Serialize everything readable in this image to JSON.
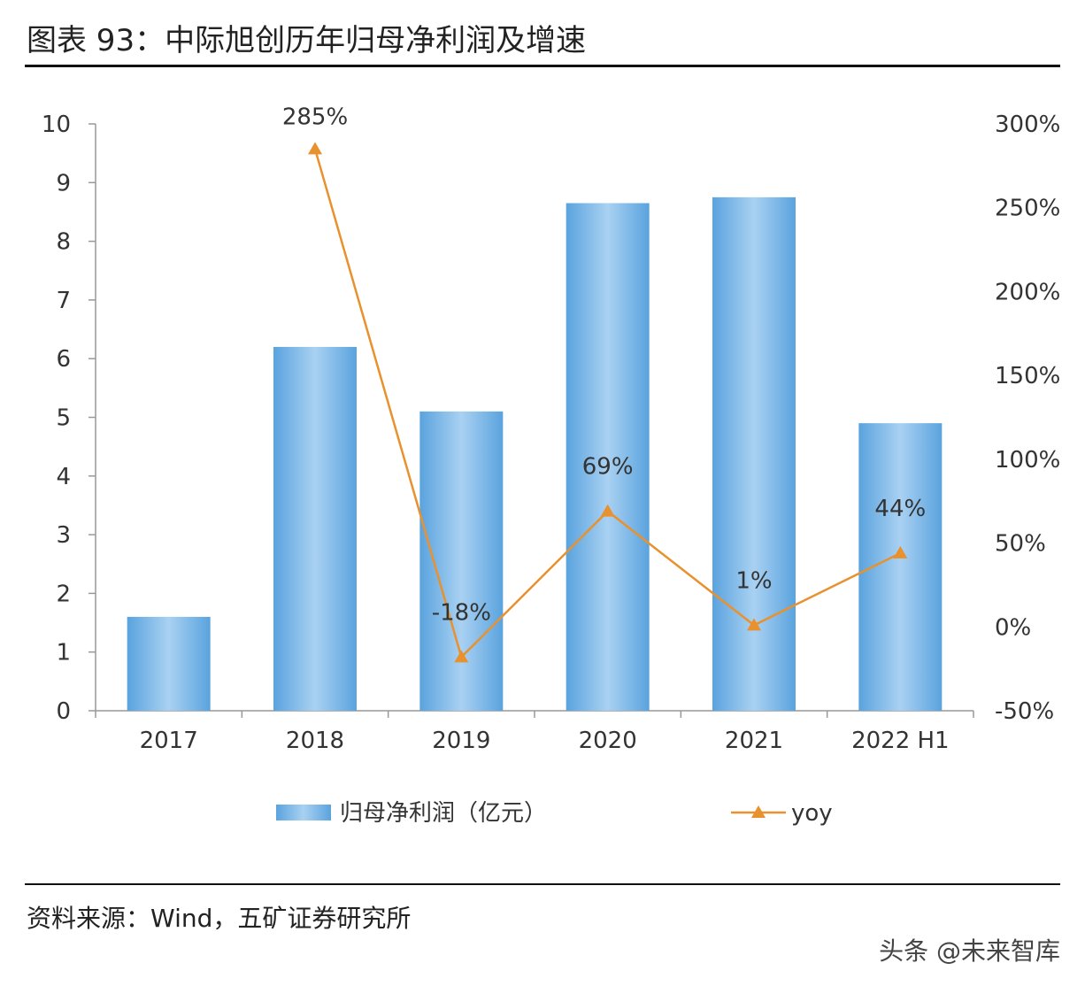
{
  "header": {
    "title": "图表 93：中际旭创历年归母净利润及增速"
  },
  "footer": {
    "source": "资料来源：Wind，五矿证券研究所",
    "watermark": "头条 @未来智库"
  },
  "colors": {
    "bar": "#5da6e0",
    "bar_light": "#a9d1f2",
    "line": "#e8912e"
  },
  "chart_data": {
    "type": "bar",
    "categories": [
      "2017",
      "2018",
      "2019",
      "2020",
      "2021",
      "2022 H1"
    ],
    "series": [
      {
        "name": "归母净利润（亿元）",
        "type": "bar",
        "axis": "left",
        "values": [
          1.6,
          6.2,
          5.1,
          8.65,
          8.75,
          4.9
        ]
      },
      {
        "name": "yoy",
        "type": "line",
        "axis": "right",
        "marker": "triangle",
        "values": [
          null,
          285,
          -18,
          69,
          1,
          44
        ],
        "labels": [
          "",
          "285%",
          "-18%",
          "69%",
          "1%",
          "44%"
        ]
      }
    ],
    "ylim": [
      0,
      10
    ],
    "yticks": [
      "0",
      "1",
      "2",
      "3",
      "4",
      "5",
      "6",
      "7",
      "8",
      "9",
      "10"
    ],
    "y2lim": [
      -50,
      300
    ],
    "y2ticks": [
      "-50%",
      "0%",
      "50%",
      "100%",
      "150%",
      "200%",
      "250%",
      "300%"
    ],
    "legend_position": "bottom"
  }
}
